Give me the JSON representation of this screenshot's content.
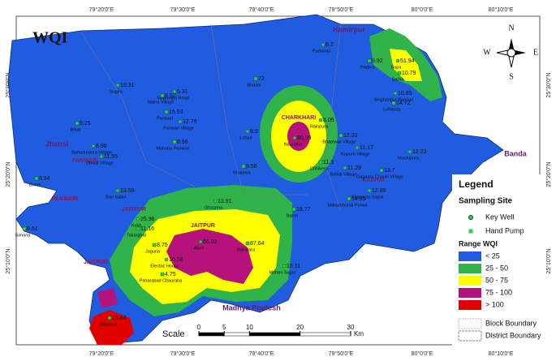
{
  "title": "WQI",
  "longitudes": [
    "79°20'0\"E",
    "79°30'0\"E",
    "79°40'0\"E",
    "79°50'0\"E",
    "80°0'0\"E",
    "80°10'0\"E"
  ],
  "latitudes": [
    "25°30'0\"N",
    "25°20'0\"N",
    "25°10'0\"N"
  ],
  "regions": [
    "Hamirpur",
    "Jhansi",
    "Banda",
    "Madhya Pradesh"
  ],
  "blocks": [
    "CHARKHARI",
    "PANWARI",
    "KABRAI",
    "JAITPUR",
    "PANWARI",
    "JAITPUR",
    "JAITPUR"
  ],
  "sites": [
    {
      "name": "Purbanta",
      "value": 8.2
    },
    {
      "name": "Padora",
      "value": 9.92
    },
    {
      "name": "Supa",
      "value": 51.94
    },
    {
      "name": "Sarha",
      "value": 10.79
    },
    {
      "name": "Singhanpur Bagnuri",
      "value": 10.85
    },
    {
      "name": "Lohanda",
      "value": 14.72
    },
    {
      "name": "Sugira",
      "value": 10.31
    },
    {
      "name": "Nakra Village",
      "value": 8.52
    },
    {
      "name": "Swaroopa Road",
      "value": 6.31
    },
    {
      "name": "Panwari",
      "value": 15.93
    },
    {
      "name": "Panwari Village",
      "value": 12.79
    },
    {
      "name": "Bihat",
      "value": 9.25
    },
    {
      "name": "Bahadurpura Village",
      "value": 8.98
    },
    {
      "name": "Mahoba Panwari",
      "value": 8.98
    },
    {
      "name": "Dhwar Village",
      "value": 11.55
    },
    {
      "name": "Bundi",
      "value": 8.94
    },
    {
      "name": "Bari Kalan",
      "value": 13.59
    },
    {
      "name": "Simaria",
      "value": 8.61
    },
    {
      "name": "Kokh",
      "value": 25.98
    },
    {
      "name": "Takarghat",
      "value": 11.16
    },
    {
      "name": "Ghosona",
      "value": 13.91
    },
    {
      "name": "Jaguria",
      "value": 8.75
    },
    {
      "name": "Electric House",
      "value": 10.58
    },
    {
      "name": "Paharabad Chauraha",
      "value": 4.75
    },
    {
      "name": "Aboh",
      "value": 66.02
    },
    {
      "name": "Nanwara",
      "value": 87.64
    },
    {
      "name": "Mohan Sagar",
      "value": 15.11
    },
    {
      "name": "Barori",
      "value": 18.77
    },
    {
      "name": "Lohari",
      "value": 8.9
    },
    {
      "name": "Bhatewa",
      "value": 8.56
    },
    {
      "name": "Nauratha",
      "value": 80.09
    },
    {
      "name": "Bhaoni",
      "value": 72
    },
    {
      "name": "Rainpura",
      "value": 8.05
    },
    {
      "name": "Bhatewar Village",
      "value": 12.33
    },
    {
      "name": "Kapura Village",
      "value": 11.17
    },
    {
      "name": "Chhikera",
      "value": 11.3
    },
    {
      "name": "Belhiti Village",
      "value": 11.29
    },
    {
      "name": "Gaganra Chauki Village",
      "value": 13.7
    },
    {
      "name": "Mochipura",
      "value": 12.23
    },
    {
      "name": "Mahuamundi Purwa",
      "value": 14.85
    },
    {
      "name": "Bijanagar Sagar",
      "value": 12.89
    },
    {
      "name": "Mahona",
      "value": 15.64
    }
  ],
  "legend": {
    "title": "Legend",
    "sampling_title": "Sampling Site",
    "sampling": [
      "Key Well",
      "Hand Pump"
    ],
    "range_title": "Range WQI",
    "ranges": [
      "< 25",
      "25 - 50",
      "50 - 75",
      "75 - 100",
      "> 100"
    ],
    "boundaries": [
      "Block Boundary",
      "District Boundary"
    ]
  },
  "scale": {
    "title": "Scale",
    "ticks": [
      0,
      5,
      10,
      20,
      30
    ],
    "unit": "Km"
  },
  "compass": [
    "N",
    "S",
    "E",
    "W"
  ]
}
